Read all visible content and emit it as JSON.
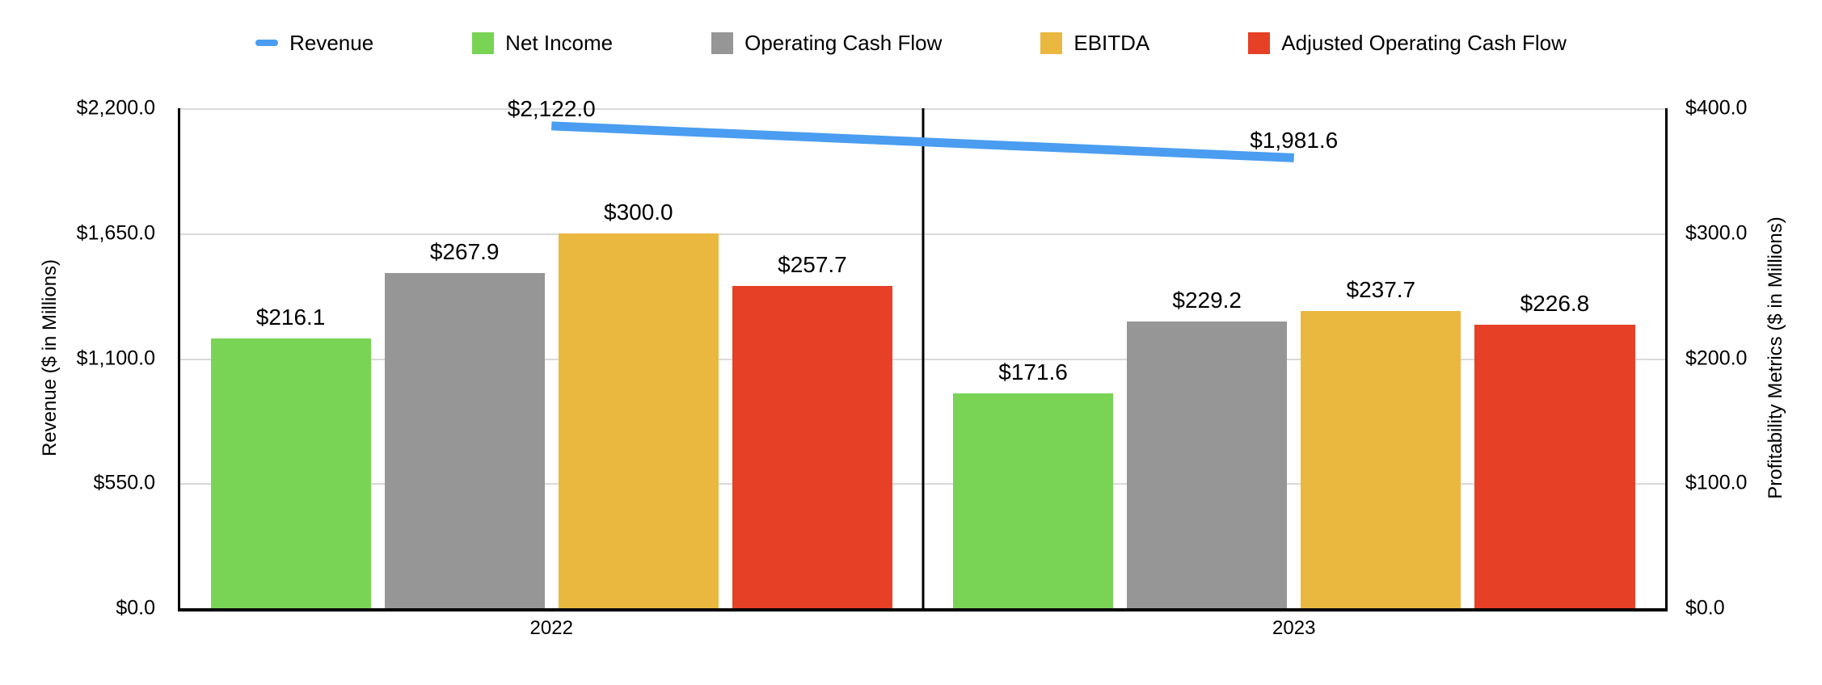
{
  "chart_data": {
    "type": "bar",
    "categories": [
      "2022",
      "2023"
    ],
    "series": [
      {
        "name": "Revenue",
        "type": "line",
        "axis": "left",
        "color": "#4a9df0",
        "values": [
          2122.0,
          1981.6
        ]
      },
      {
        "name": "Net Income",
        "type": "bar",
        "axis": "right",
        "color": "#79d455",
        "values": [
          216.1,
          171.6
        ]
      },
      {
        "name": "Operating Cash Flow",
        "type": "bar",
        "axis": "right",
        "color": "#969696",
        "values": [
          267.9,
          229.2
        ]
      },
      {
        "name": "EBITDA",
        "type": "bar",
        "axis": "right",
        "color": "#eab73f",
        "values": [
          300.0,
          237.7
        ]
      },
      {
        "name": "Adjusted Operating Cash Flow",
        "type": "bar",
        "axis": "right",
        "color": "#e64027",
        "values": [
          257.7,
          226.8
        ]
      }
    ],
    "left_axis": {
      "label": "Revenue ($ in Millions)",
      "min": 0,
      "max": 2200,
      "ticks": [
        0,
        550,
        1100,
        1650,
        2200
      ]
    },
    "right_axis": {
      "label": "Profitability Metrics ($ in Millions)",
      "min": 0,
      "max": 400,
      "ticks": [
        0,
        100,
        200,
        300,
        400
      ]
    },
    "value_prefix": "$",
    "data_labels": true,
    "grid": true,
    "legend_position": "top",
    "colors": {
      "revenue_line": "#4a9df0",
      "net_income": "#79d455",
      "operating_cash_flow": "#969696",
      "ebitda": "#eab73f",
      "adjusted_operating_cash_flow": "#e64027",
      "gridline": "#d9d9d9",
      "axis": "#000000"
    }
  }
}
